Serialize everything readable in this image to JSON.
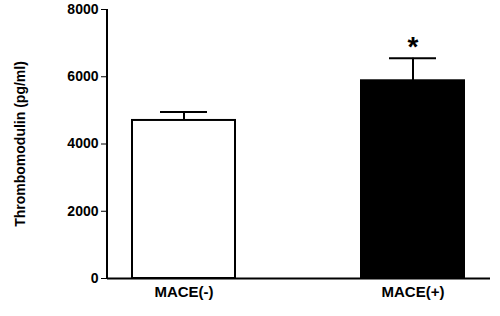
{
  "chart_data": {
    "type": "bar",
    "categories": [
      "MACE(-)",
      "MACE(+)"
    ],
    "values": [
      4700,
      5880
    ],
    "errors": [
      250,
      670
    ],
    "colors": [
      "#ffffff",
      "#000000"
    ],
    "ylabel": "Thrombomodulin (pg/ml)",
    "ylim": [
      0,
      8000
    ],
    "yticks": [
      0,
      2000,
      4000,
      6000,
      8000
    ],
    "annotations": [
      {
        "category": "MACE(+)",
        "text": "*"
      }
    ]
  }
}
